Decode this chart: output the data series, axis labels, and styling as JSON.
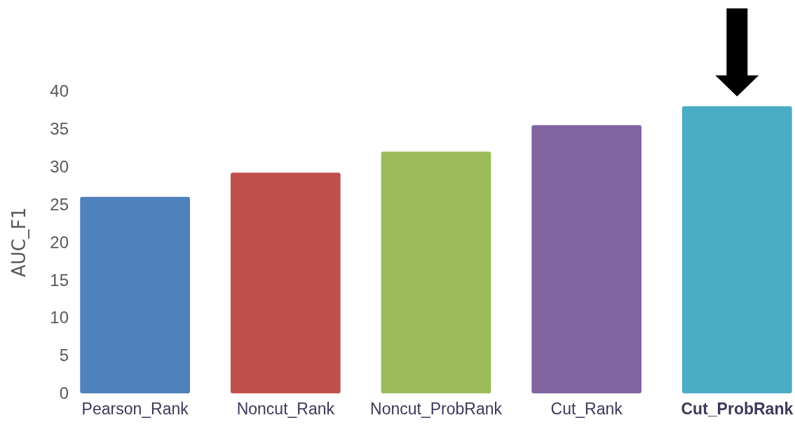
{
  "chart_data": {
    "type": "bar",
    "ylabel": "AUC_F1",
    "categories": [
      "Pearson_Rank",
      "Noncut_Rank",
      "Noncut_ProbRank",
      "Cut_Rank",
      "Cut_ProbRank"
    ],
    "values": [
      26,
      29.2,
      32,
      35.5,
      38
    ],
    "colors": [
      "#4f81bd",
      "#c0504d",
      "#9bbb59",
      "#8064a2",
      "#4bacc6"
    ],
    "ylim": [
      0,
      40
    ],
    "yticks": [
      0,
      5,
      10,
      15,
      20,
      25,
      30,
      35,
      40
    ],
    "grid": false
  }
}
